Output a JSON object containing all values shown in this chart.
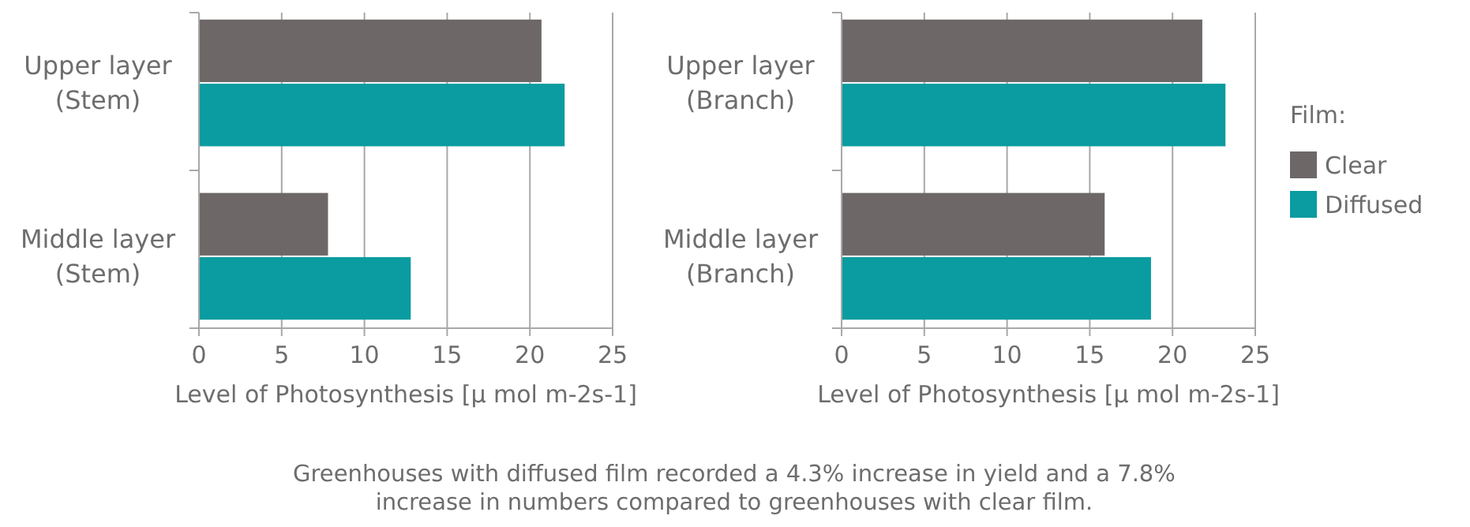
{
  "chart_data": [
    {
      "type": "bar",
      "orientation": "horizontal",
      "categories": [
        "Upper layer\n(Stem)",
        "Middle layer\n(Stem)"
      ],
      "xlabel": "Level of Photosynthesis [μ mol m-2s-1]",
      "xlim": [
        0,
        25
      ],
      "xticks": [
        0,
        5,
        10,
        15,
        20,
        25
      ],
      "grid": "x",
      "legend": false,
      "series": [
        {
          "color": "#6d6867",
          "values": [
            20.7,
            7.8
          ]
        },
        {
          "color": "#0a9ca0",
          "values": [
            22.1,
            12.8
          ]
        }
      ]
    },
    {
      "type": "bar",
      "orientation": "horizontal",
      "categories": [
        "Upper layer\n(Branch)",
        "Middle layer\n(Branch)"
      ],
      "xlabel": "Level of Photosynthesis [μ mol m-2s-1]",
      "xlim": [
        0,
        25
      ],
      "xticks": [
        0,
        5,
        10,
        15,
        20,
        25
      ],
      "grid": "x",
      "legend": "right",
      "legend_title": "Film:",
      "annotations": [
        "Greenhouses with diffused film recorded a 4.3% increase in yield and a 7.8%\nincrease in numbers compared to greenhouses with clear film."
      ],
      "series": [
        {
          "name": "Clear",
          "color": "#6d6867",
          "values": [
            21.8,
            15.9
          ]
        },
        {
          "name": "Diffused",
          "color": "#0a9ca0",
          "values": [
            23.2,
            18.7
          ]
        }
      ]
    }
  ]
}
